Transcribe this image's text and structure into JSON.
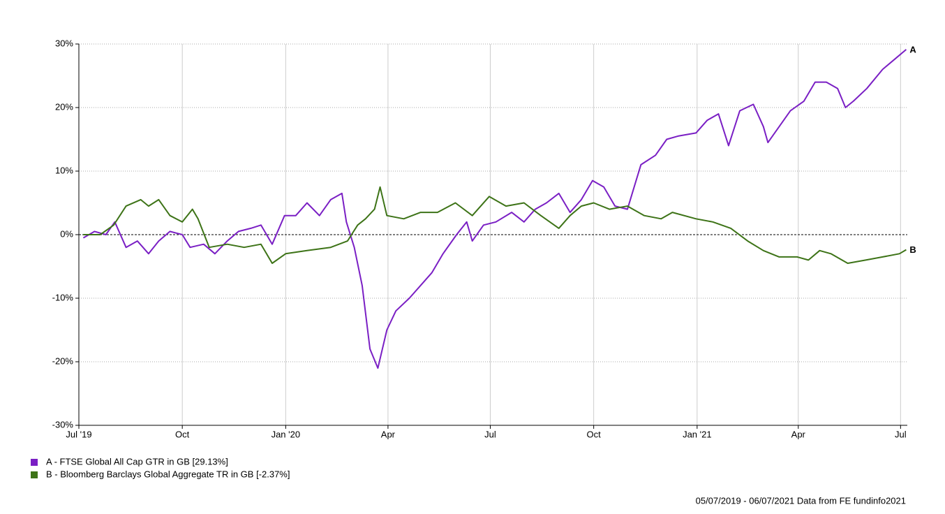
{
  "chart_data": {
    "type": "line",
    "xlim": [
      "2019-07-01",
      "2021-07-07"
    ],
    "xticks": [
      {
        "value": "2019-07-01",
        "label": "Jul '19"
      },
      {
        "value": "2019-10-01",
        "label": "Oct"
      },
      {
        "value": "2020-01-01",
        "label": "Jan '20"
      },
      {
        "value": "2020-04-01",
        "label": "Apr"
      },
      {
        "value": "2020-07-01",
        "label": "Jul"
      },
      {
        "value": "2020-10-01",
        "label": "Oct"
      },
      {
        "value": "2021-01-01",
        "label": "Jan '21"
      },
      {
        "value": "2021-04-01",
        "label": "Apr"
      },
      {
        "value": "2021-07-01",
        "label": "Jul"
      }
    ],
    "ylim": [
      -30,
      30
    ],
    "yticks": [
      {
        "value": -30,
        "label": "-30%"
      },
      {
        "value": -20,
        "label": "-20%"
      },
      {
        "value": -10,
        "label": "-10%"
      },
      {
        "value": 0,
        "label": "0%"
      },
      {
        "value": 10,
        "label": "10%"
      },
      {
        "value": 20,
        "label": "20%"
      },
      {
        "value": 30,
        "label": "30%"
      }
    ],
    "grid": true,
    "source": "05/07/2019 - 06/07/2021 Data from FE fundinfo2021",
    "series": [
      {
        "name": "A - FTSE Global All Cap GTR in GB [29.13%]",
        "label": "A",
        "color": "#7a1fc4",
        "x": [
          "2019-07-05",
          "2019-07-15",
          "2019-07-25",
          "2019-08-02",
          "2019-08-12",
          "2019-08-22",
          "2019-09-01",
          "2019-09-10",
          "2019-09-20",
          "2019-10-01",
          "2019-10-08",
          "2019-10-20",
          "2019-10-30",
          "2019-11-10",
          "2019-11-20",
          "2019-12-01",
          "2019-12-10",
          "2019-12-20",
          "2019-12-31",
          "2020-01-10",
          "2020-01-20",
          "2020-01-31",
          "2020-02-10",
          "2020-02-20",
          "2020-02-24",
          "2020-03-02",
          "2020-03-09",
          "2020-03-16",
          "2020-03-23",
          "2020-03-31",
          "2020-04-08",
          "2020-04-20",
          "2020-04-30",
          "2020-05-10",
          "2020-05-20",
          "2020-06-01",
          "2020-06-10",
          "2020-06-15",
          "2020-06-25",
          "2020-07-06",
          "2020-07-20",
          "2020-07-31",
          "2020-08-10",
          "2020-08-20",
          "2020-08-31",
          "2020-09-10",
          "2020-09-20",
          "2020-09-30",
          "2020-10-10",
          "2020-10-20",
          "2020-10-31",
          "2020-11-06",
          "2020-11-12",
          "2020-11-25",
          "2020-12-05",
          "2020-12-15",
          "2020-12-31",
          "2021-01-10",
          "2021-01-20",
          "2021-01-29",
          "2021-02-08",
          "2021-02-20",
          "2021-03-01",
          "2021-03-05",
          "2021-03-15",
          "2021-03-25",
          "2021-04-06",
          "2021-04-16",
          "2021-04-26",
          "2021-05-06",
          "2021-05-13",
          "2021-05-20",
          "2021-06-01",
          "2021-06-15",
          "2021-06-25",
          "2021-07-06"
        ],
        "values": [
          -0.5,
          0.5,
          0,
          2,
          -2,
          -1,
          -3,
          -1,
          0.5,
          0,
          -2,
          -1.5,
          -3,
          -1,
          0.5,
          1,
          1.5,
          -1.5,
          3,
          3,
          5,
          3,
          5.5,
          6.5,
          2,
          -2,
          -8,
          -18,
          -21,
          -15,
          -12,
          -10,
          -8,
          -6,
          -3,
          0,
          2,
          -1,
          1.5,
          2,
          3.5,
          2,
          4,
          5,
          6.5,
          3.5,
          5.5,
          8.5,
          7.5,
          4.5,
          4,
          7.5,
          11,
          12.5,
          15,
          15.5,
          16,
          18,
          19,
          14,
          19.5,
          20.5,
          17,
          14.5,
          17,
          19.5,
          21,
          24,
          24,
          23,
          20,
          21,
          23,
          26,
          27.5,
          29.13
        ]
      },
      {
        "name": "B - Bloomberg Barclays Global Aggregate TR in GB [-2.37%]",
        "label": "B",
        "color": "#3d7317",
        "x": [
          "2019-07-05",
          "2019-07-20",
          "2019-08-01",
          "2019-08-12",
          "2019-08-25",
          "2019-09-01",
          "2019-09-10",
          "2019-09-20",
          "2019-10-01",
          "2019-10-10",
          "2019-10-15",
          "2019-10-25",
          "2019-11-10",
          "2019-11-25",
          "2019-12-10",
          "2019-12-20",
          "2020-01-01",
          "2020-01-20",
          "2020-02-10",
          "2020-02-25",
          "2020-03-05",
          "2020-03-12",
          "2020-03-20",
          "2020-03-25",
          "2020-03-31",
          "2020-04-15",
          "2020-04-30",
          "2020-05-15",
          "2020-05-31",
          "2020-06-15",
          "2020-06-30",
          "2020-07-15",
          "2020-07-31",
          "2020-08-15",
          "2020-08-31",
          "2020-09-10",
          "2020-09-20",
          "2020-10-01",
          "2020-10-15",
          "2020-10-31",
          "2020-11-15",
          "2020-11-30",
          "2020-12-10",
          "2020-12-31",
          "2021-01-15",
          "2021-01-31",
          "2021-02-15",
          "2021-03-01",
          "2021-03-15",
          "2021-03-31",
          "2021-04-10",
          "2021-04-20",
          "2021-04-30",
          "2021-05-15",
          "2021-05-31",
          "2021-06-15",
          "2021-06-30",
          "2021-07-06"
        ],
        "values": [
          0,
          0,
          1.5,
          4.5,
          5.5,
          4.5,
          5.5,
          3,
          2,
          4,
          2.5,
          -2,
          -1.5,
          -2,
          -1.5,
          -4.5,
          -3,
          -2.5,
          -2,
          -1,
          1.5,
          2.5,
          4,
          7.5,
          3,
          2.5,
          3.5,
          3.5,
          5,
          3,
          6,
          4.5,
          5,
          3,
          1,
          3,
          4.5,
          5,
          4,
          4.5,
          3,
          2.5,
          3.5,
          2.5,
          2,
          1,
          -1,
          -2.5,
          -3.5,
          -3.5,
          -4,
          -2.5,
          -3,
          -4.5,
          -4,
          -3.5,
          -3,
          -2.37
        ]
      }
    ]
  }
}
